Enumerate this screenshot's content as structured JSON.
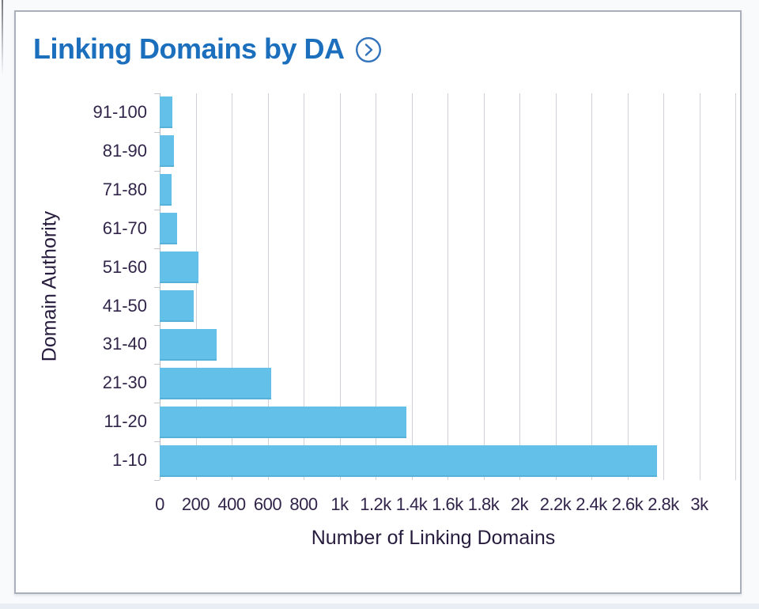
{
  "page": {
    "background": "#f9fafc",
    "bottom_strip_color": "#e9edf4"
  },
  "card": {
    "title": "Linking Domains by DA",
    "title_color": "#1b6fbd",
    "border_color": "#a9b0ba",
    "icon": "chevron-right-circle",
    "icon_color": "#3273bb"
  },
  "chart_data": {
    "type": "bar",
    "orientation": "horizontal",
    "title": "Linking Domains by DA",
    "ylabel": "Domain Authority",
    "xlabel": "Number of Linking Domains",
    "categories": [
      "91-100",
      "81-90",
      "71-80",
      "61-70",
      "51-60",
      "41-50",
      "31-40",
      "21-30",
      "11-20",
      "1-10"
    ],
    "values": [
      70,
      78,
      65,
      98,
      215,
      190,
      315,
      620,
      1370,
      2765
    ],
    "xlim": [
      0,
      3200
    ],
    "x_tick_interval": 200,
    "x_tick_labels": [
      "0",
      "200",
      "400",
      "600",
      "800",
      "1k",
      "1.2k",
      "1.4k",
      "1.6k",
      "1.8k",
      "2k",
      "2.2k",
      "2.4k",
      "2.6k",
      "2.8k",
      "3k"
    ],
    "gridline_count": 17,
    "grid": true,
    "legend": false,
    "bar_color": "#63c0e8",
    "grid_color": "#ced2d8",
    "axis_color": "#b7bcc4",
    "tick_text_color": "#32254a"
  }
}
